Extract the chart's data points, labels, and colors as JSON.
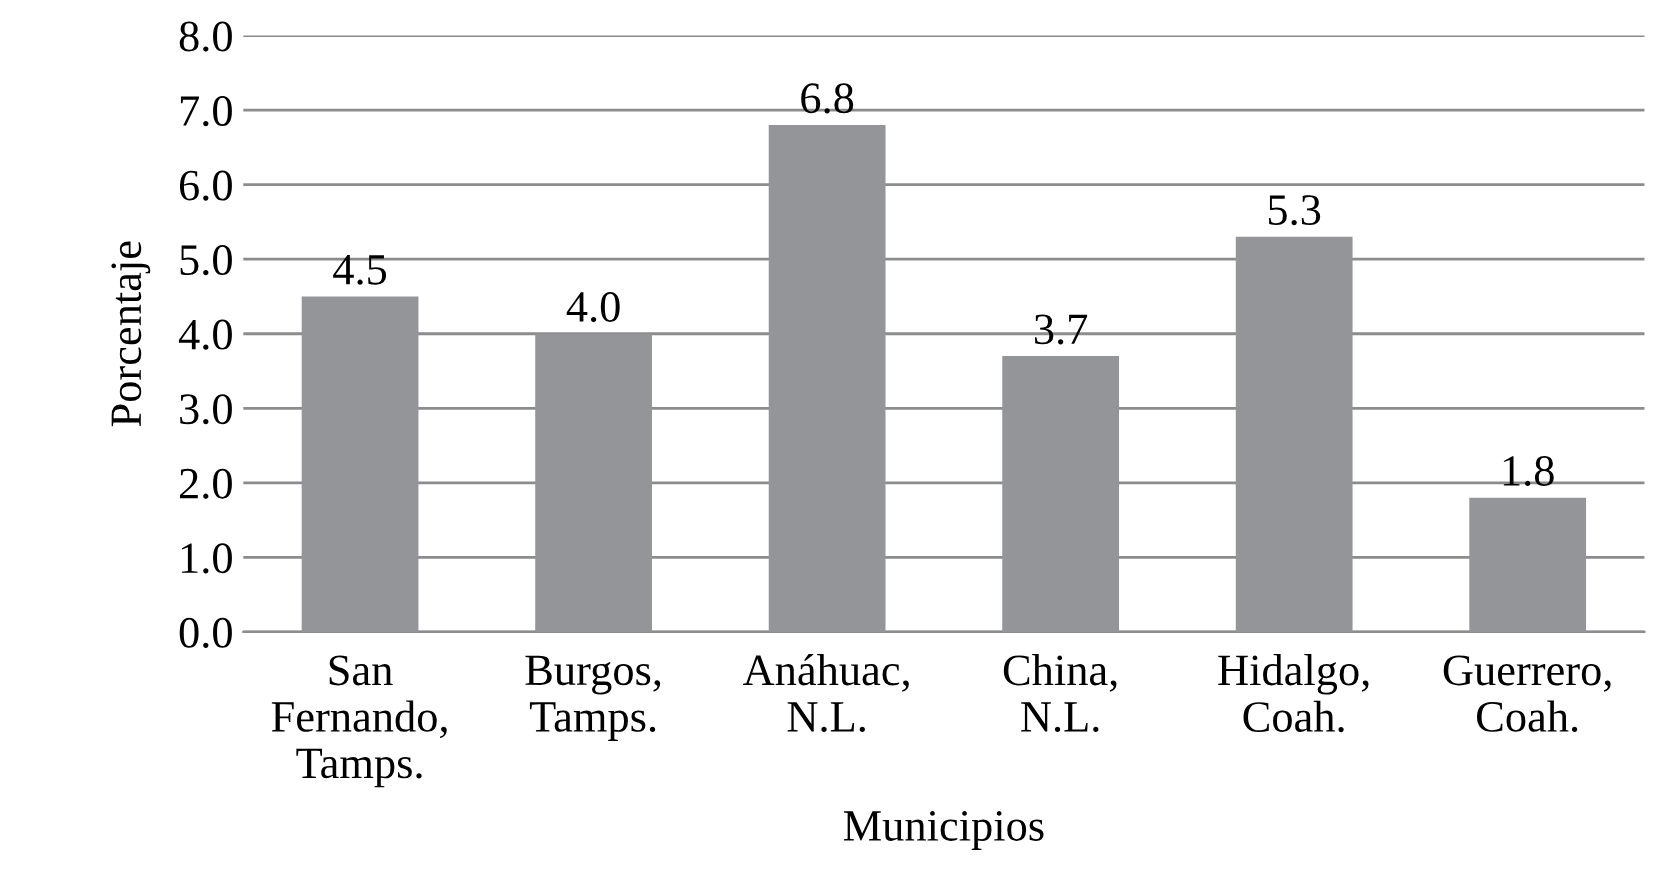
{
  "chart_data": {
    "type": "bar",
    "xlabel": "Municipios",
    "ylabel": "Porcentaje",
    "categories": [
      "San\nFernando,\nTamps.",
      "Burgos,\nTamps.",
      "Anáhuac,\nN.L.",
      "China,\nN.L.",
      "Hidalgo,\nCoah.",
      "Guerrero,\nCoah."
    ],
    "values": [
      4.5,
      4.0,
      6.8,
      3.7,
      5.3,
      1.8
    ],
    "value_labels": [
      "4.5",
      "4.0",
      "6.8",
      "3.7",
      "5.3",
      "1.8"
    ],
    "color": "#939598",
    "ylim": [
      0,
      8
    ],
    "yticks": [
      {
        "value": 0,
        "label": "0.0"
      },
      {
        "value": 1,
        "label": "1.0"
      },
      {
        "value": 2,
        "label": "2.0"
      },
      {
        "value": 3,
        "label": "3.0"
      },
      {
        "value": 4,
        "label": "4.0"
      },
      {
        "value": 5,
        "label": "5.0"
      },
      {
        "value": 6,
        "label": "6.0"
      },
      {
        "value": 7,
        "label": "7.0"
      },
      {
        "value": 8,
        "label": "8.0"
      }
    ],
    "grid": "y"
  }
}
